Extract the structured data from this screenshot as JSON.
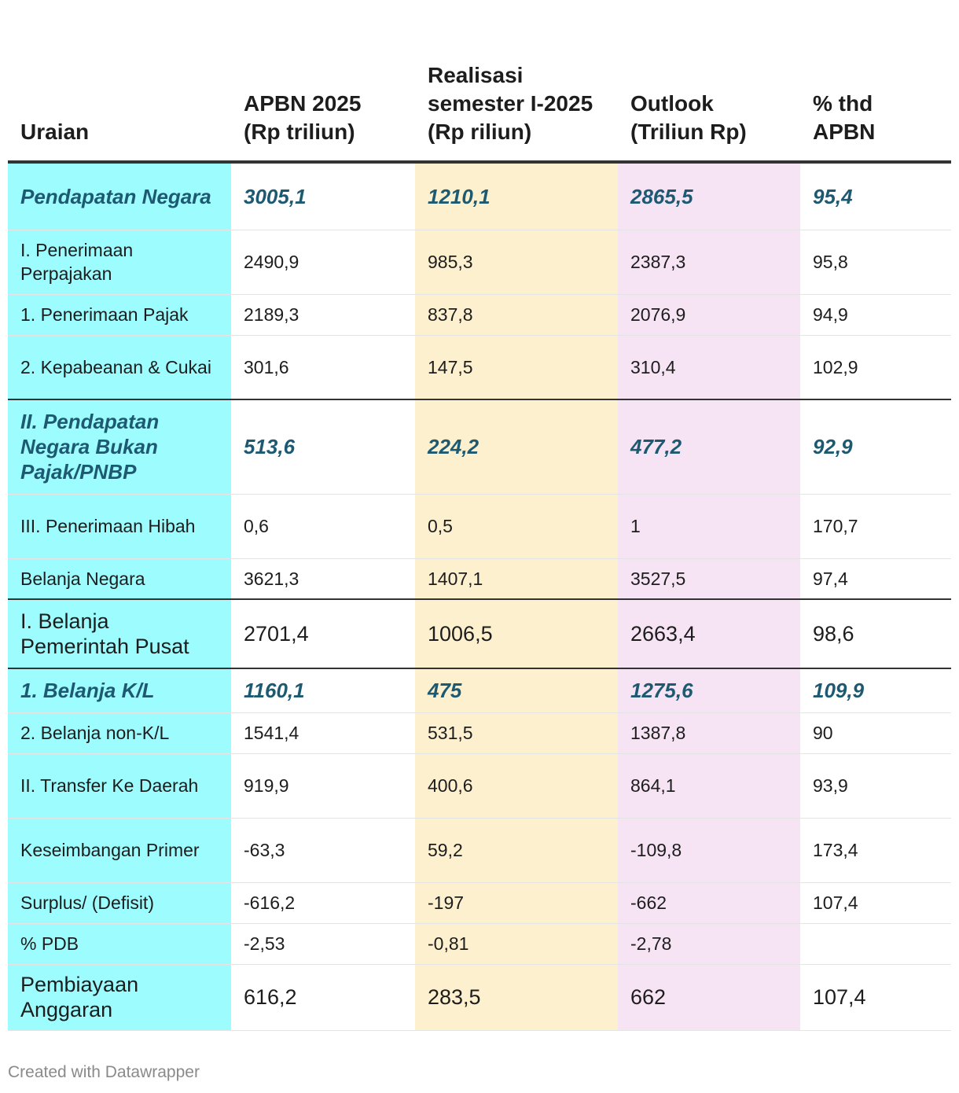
{
  "chart_data": {
    "type": "table",
    "columns": [
      "Uraian",
      "APBN 2025 (Rp triliun)",
      "Realisasi semester I-2025 (Rp riliun)",
      "Outlook (Triliun Rp)",
      "% thd APBN"
    ],
    "rows": [
      {
        "cells": [
          "Pendapatan Negara",
          "3005,1",
          "1210,1",
          "2865,5",
          "95,4"
        ],
        "style": "highlight",
        "h": 86
      },
      {
        "cells": [
          "I. Penerimaan Perpajakan",
          "2490,9",
          "985,3",
          "2387,3",
          "95,8"
        ],
        "style": "normal",
        "h": 82
      },
      {
        "cells": [
          "1. Penerimaan Pajak",
          "2189,3",
          "837,8",
          "2076,9",
          "94,9"
        ],
        "style": "normal",
        "h": 52
      },
      {
        "cells": [
          "2. Kepabeanan & Cukai",
          "301,6",
          "147,5",
          "310,4",
          "102,9"
        ],
        "style": "normal",
        "h": 82
      },
      {
        "cells": [
          "II. Pendapatan Negara Bukan Pajak/PNBP",
          "513,6",
          "224,2",
          "477,2",
          "92,9"
        ],
        "style": "highlight",
        "sep": true,
        "h": 120
      },
      {
        "cells": [
          "III. Penerimaan Hibah",
          "0,6",
          "0,5",
          "1",
          "170,7"
        ],
        "style": "normal",
        "h": 82
      },
      {
        "cells": [
          "Belanja Negara",
          "3621,3",
          "1407,1",
          "3527,5",
          "97,4"
        ],
        "style": "normal",
        "h": 52
      },
      {
        "cells": [
          "I. Belanja Pemerintah Pusat",
          "2701,4",
          "1006,5",
          "2663,4",
          "98,6"
        ],
        "style": "big",
        "sep": true,
        "h": 88
      },
      {
        "cells": [
          "1. Belanja K/L",
          "1160,1",
          "475",
          "1275,6",
          "109,9"
        ],
        "style": "highlight",
        "sep": true,
        "h": 56
      },
      {
        "cells": [
          "2. Belanja non-K/L",
          "1541,4",
          "531,5",
          "1387,8",
          "90"
        ],
        "style": "normal",
        "h": 52
      },
      {
        "cells": [
          "II. Transfer Ke Daerah",
          "919,9",
          "400,6",
          "864,1",
          "93,9"
        ],
        "style": "normal",
        "h": 82
      },
      {
        "cells": [
          "Keseimbangan Primer",
          "-63,3",
          "59,2",
          "-109,8",
          "173,4"
        ],
        "style": "normal",
        "h": 82
      },
      {
        "cells": [
          "Surplus/ (Defisit)",
          "-616,2",
          "-197",
          "-662",
          "107,4"
        ],
        "style": "normal",
        "h": 52
      },
      {
        "cells": [
          "% PDB",
          "-2,53",
          "-0,81",
          "-2,78",
          ""
        ],
        "style": "normal",
        "h": 52
      },
      {
        "cells": [
          "Pembiayaan Anggaran",
          "616,2",
          "283,5",
          "662",
          "107,4"
        ],
        "style": "big",
        "h": 84
      }
    ]
  },
  "colors": {
    "col_uraian": "#9dfcfd",
    "col_realisasi": "#fdf0cf",
    "col_outlook": "#f6e4f5",
    "highlight_text": "#1d5a72"
  },
  "footer": {
    "credit": "Created with Datawrapper"
  }
}
